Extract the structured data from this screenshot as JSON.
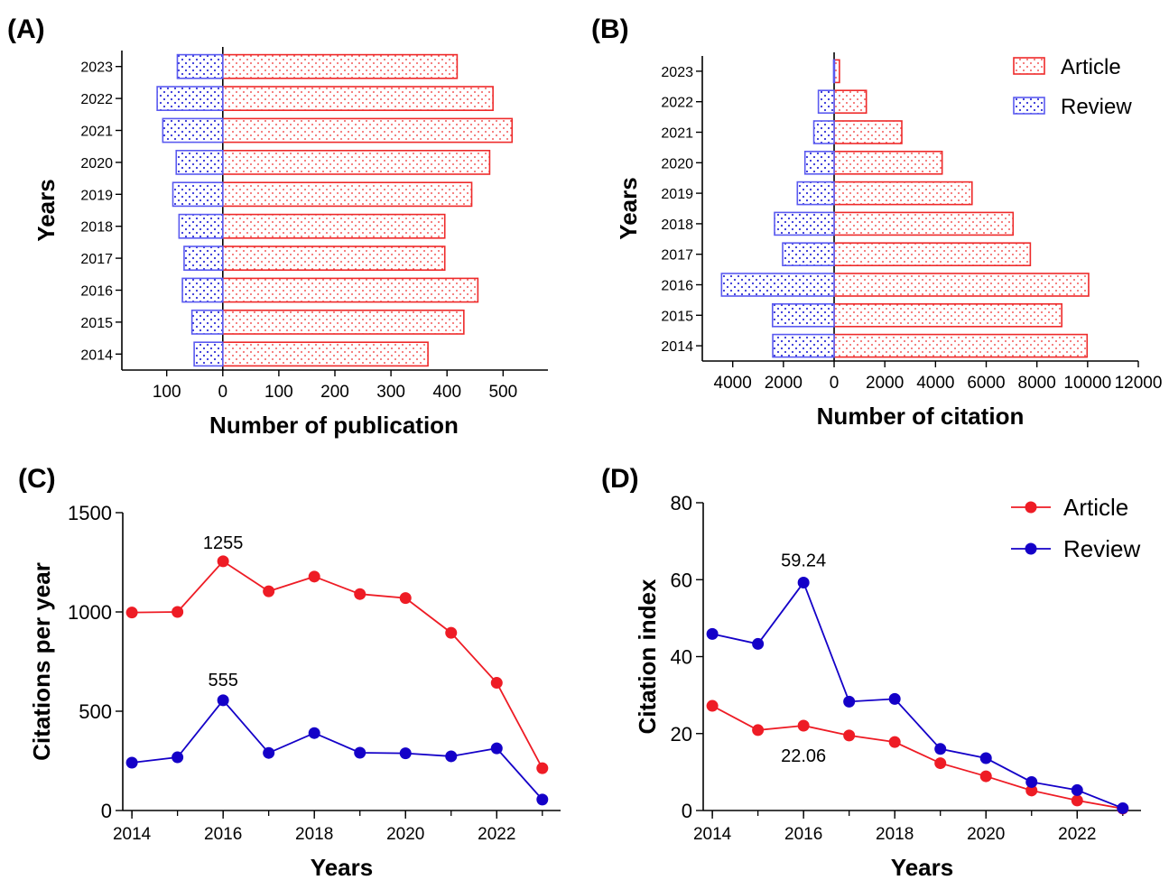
{
  "colors": {
    "article": "#ee1c25",
    "review": "#1400c8",
    "article_bar": "#ee2a2a",
    "review_bar": "#5a5af0"
  },
  "chart_data": [
    {
      "panel": "(A)",
      "type": "bar",
      "orientation": "horizontal-butterfly",
      "ylabel": "Years",
      "xlabel": "Number of publication",
      "categories": [
        "2014",
        "2015",
        "2016",
        "2017",
        "2018",
        "2019",
        "2020",
        "2021",
        "2022",
        "2023"
      ],
      "series": [
        {
          "name": "Article",
          "values": [
            366,
            430,
            455,
            396,
            396,
            444,
            476,
            516,
            482,
            418
          ]
        },
        {
          "name": "Review",
          "values": [
            51,
            55,
            72,
            69,
            78,
            89,
            83,
            107,
            117,
            81
          ]
        }
      ],
      "x_ticks_left": [
        "100",
        "0"
      ],
      "x_ticks_right": [
        "100",
        "200",
        "300",
        "400",
        "500"
      ],
      "xlim": [
        -180,
        580
      ],
      "grid": false
    },
    {
      "panel": "(B)",
      "type": "bar",
      "orientation": "horizontal-butterfly",
      "ylabel": "Years",
      "xlabel": "Number of citation",
      "categories": [
        "2014",
        "2015",
        "2016",
        "2017",
        "2018",
        "2019",
        "2020",
        "2021",
        "2022",
        "2023"
      ],
      "series": [
        {
          "name": "Article",
          "values": [
            9980,
            8980,
            10040,
            7740,
            7060,
            5440,
            4260,
            2670,
            1270,
            210
          ]
        },
        {
          "name": "Review",
          "values": [
            2420,
            2430,
            4440,
            2030,
            2350,
            1450,
            1150,
            800,
            620,
            20
          ]
        }
      ],
      "legend": {
        "position": "top-right",
        "entries": [
          "Article",
          "Review"
        ]
      },
      "x_ticks_left": [
        "4000",
        "2000",
        "0"
      ],
      "x_ticks_right": [
        "0",
        "2000",
        "4000",
        "6000",
        "8000",
        "10000",
        "12000"
      ],
      "xlim": [
        -5200,
        12000
      ],
      "grid": false
    },
    {
      "panel": "(C)",
      "type": "line",
      "xlabel": "Years",
      "ylabel": "Citations per year",
      "x": [
        2014,
        2015,
        2016,
        2017,
        2018,
        2019,
        2020,
        2021,
        2022,
        2023
      ],
      "series": [
        {
          "name": "Article",
          "values": [
            997,
            1000,
            1255,
            1104,
            1178,
            1090,
            1070,
            895,
            643,
            213
          ]
        },
        {
          "name": "Review",
          "values": [
            241,
            268,
            555,
            290,
            390,
            291,
            288,
            273,
            313,
            55
          ]
        }
      ],
      "annotations": [
        {
          "text": "1255",
          "x": 2016,
          "y": 1255
        },
        {
          "text": "555",
          "x": 2016,
          "y": 555
        }
      ],
      "x_ticks": [
        "2014",
        "2016",
        "2018",
        "2020",
        "2022"
      ],
      "y_ticks": [
        "0",
        "500",
        "1000",
        "1500"
      ],
      "xlim": [
        2013.8,
        2023.4
      ],
      "ylim": [
        0,
        1500
      ],
      "grid": false
    },
    {
      "panel": "(D)",
      "type": "line",
      "xlabel": "Years",
      "ylabel": "Citation index",
      "x": [
        2014,
        2015,
        2016,
        2017,
        2018,
        2019,
        2020,
        2021,
        2022,
        2023
      ],
      "series": [
        {
          "name": "Article",
          "values": [
            27.2,
            20.9,
            22.06,
            19.5,
            17.8,
            12.3,
            8.9,
            5.2,
            2.6,
            0.5
          ]
        },
        {
          "name": "Review",
          "values": [
            45.9,
            43.3,
            59.24,
            28.3,
            29.0,
            16.0,
            13.6,
            7.4,
            5.3,
            0.6
          ]
        }
      ],
      "annotations": [
        {
          "text": "59.24",
          "x": 2016,
          "y": 59.24
        },
        {
          "text": "22.06",
          "x": 2016,
          "y": 22.06
        }
      ],
      "legend": {
        "position": "top-right",
        "entries": [
          "Article",
          "Review"
        ]
      },
      "x_ticks": [
        "2014",
        "2016",
        "2018",
        "2020",
        "2022"
      ],
      "y_ticks": [
        "0",
        "20",
        "40",
        "60",
        "80"
      ],
      "xlim": [
        2013.8,
        2023.4
      ],
      "ylim": [
        0,
        80
      ],
      "grid": false
    }
  ]
}
